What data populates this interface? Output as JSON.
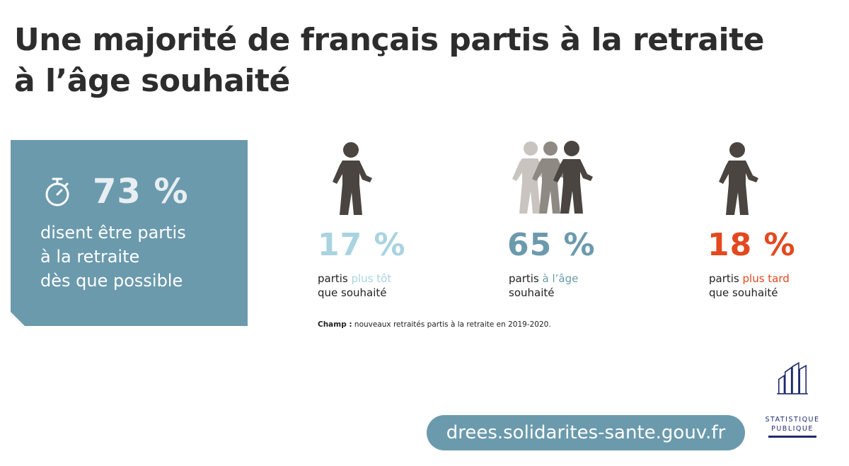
{
  "title": {
    "line1": "Une majorité de français partis à la retraite",
    "line2": "à l’âge souhaité"
  },
  "highlight": {
    "stat": "73 %",
    "lines": [
      "disent être partis",
      "à la retraite",
      "dès que possible"
    ],
    "icon": "stopwatch-icon"
  },
  "groups": [
    {
      "pct": "17 %",
      "color": "#a9d3e0",
      "caption_pre": "partis ",
      "caption_em": "plus tôt",
      "caption_line2": "que souhaité",
      "icon": "walking-person-icon"
    },
    {
      "pct": "65 %",
      "color": "#6b9aad",
      "caption_pre": "partis ",
      "caption_em": "à l’âge",
      "caption_line2": "souhaité",
      "icon": "walking-group-icon"
    },
    {
      "pct": "18 %",
      "color": "#e4481e",
      "caption_pre": "partis ",
      "caption_em": "plus tard",
      "caption_line2": "que souhaité",
      "icon": "walking-person-icon"
    }
  ],
  "champ": {
    "label": "Champ :",
    "text": " nouveaux retraités partis à la retraite en 2019-2020."
  },
  "url": "drees.solidarites-sante.gouv.fr",
  "logo": {
    "line1": "STATISTIQUE",
    "line2": "PUBLIQUE",
    "color": "#1e2b6e"
  }
}
